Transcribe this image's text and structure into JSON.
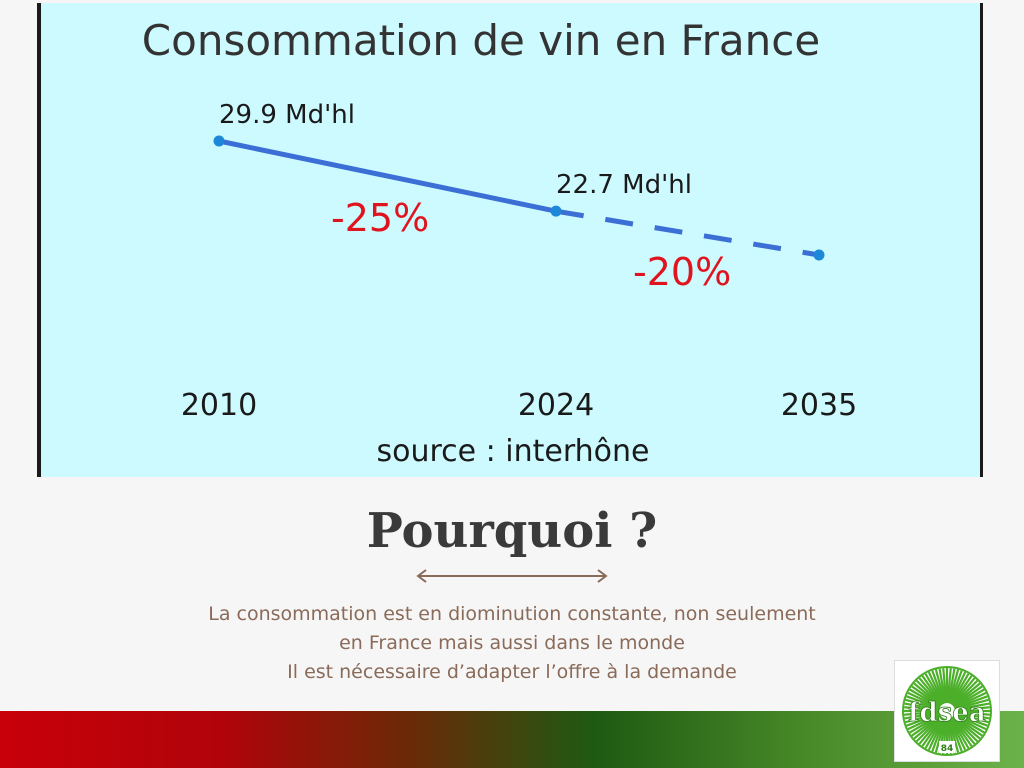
{
  "chart_data": {
    "type": "line",
    "title": "Consommation de vin en France",
    "categories": [
      "2010",
      "2024",
      "2035"
    ],
    "series": [
      {
        "values": [
          29.9,
          22.7,
          18.2
        ],
        "segments": [
          {
            "from": "2010",
            "to": "2024",
            "style": "solid"
          },
          {
            "from": "2024",
            "to": "2035",
            "style": "dashed"
          }
        ]
      }
    ],
    "data_labels": [
      {
        "category": "2010",
        "text": "29.9 Md'hl"
      },
      {
        "category": "2024",
        "text": "22.7 Md'hl"
      }
    ],
    "annotations": [
      {
        "text": "-25%",
        "segment": "2010-2024"
      },
      {
        "text": "-20%",
        "segment": "2024-2035"
      }
    ],
    "source": "source : interhône",
    "colors": {
      "line": "#3b6fd6",
      "point": "#1e88d8",
      "percent": "#e0141e",
      "background": "#ccfaff"
    }
  },
  "heading": "Pourquoi ?",
  "description": [
    "La consommation est en diominution constante, non seulement",
    "en France mais aussi dans le monde",
    "Il est nécessaire d’adapter l’offre à la demande"
  ],
  "logo": {
    "text": "fdsea",
    "number": "84",
    "color": "#4caf2a"
  },
  "colors": {
    "band_start": "#c8000a",
    "band_end": "#6cb24a",
    "arrow": "#8a6a58"
  }
}
